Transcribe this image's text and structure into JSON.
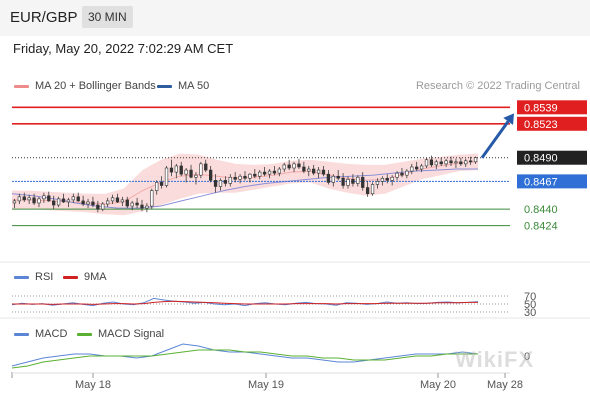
{
  "header": {
    "pair": "EUR/GBP",
    "timeframe": "30 MIN"
  },
  "datetime": "Friday, May 20, 2022 7:02:29 AM CET",
  "legend": {
    "main": [
      {
        "label": "MA 20 + Bollinger Bands",
        "color": "#f08b8b"
      },
      {
        "label": "MA 50",
        "color": "#2e5c9e"
      }
    ],
    "rsi": [
      {
        "label": "RSI",
        "color": "#5b86d6"
      },
      {
        "label": "9MA",
        "color": "#d02020"
      }
    ],
    "macd": [
      {
        "label": "MACD",
        "color": "#5b86d6"
      },
      {
        "label": "MACD Signal",
        "color": "#5ab030"
      }
    ]
  },
  "research_credit": "Research © 2022 Trading Central",
  "watermark": "WikiFX",
  "chart_data": [
    {
      "type": "candlestick",
      "panel": "price",
      "y_range": [
        0.841,
        0.855
      ],
      "levels": [
        {
          "label": "0.8539",
          "value": 0.8539,
          "kind": "resistance",
          "color": "#e02020"
        },
        {
          "label": "0.8523",
          "value": 0.8523,
          "kind": "resistance",
          "color": "#e02020"
        },
        {
          "label": "0.8490",
          "value": 0.849,
          "kind": "last price",
          "color": "#222222"
        },
        {
          "label": "0.8467",
          "value": 0.8467,
          "kind": "pivot",
          "color": "#2f6fd6"
        },
        {
          "label": "0.8440",
          "value": 0.844,
          "kind": "support",
          "color": "#3a8a3a"
        },
        {
          "label": "0.8424",
          "value": 0.8424,
          "kind": "support",
          "color": "#3a8a3a"
        }
      ],
      "forecast_arrow": {
        "from": 0.849,
        "to": 0.8539,
        "direction": "up"
      },
      "ohlc": [
        [
          0.8446,
          0.845,
          0.8441,
          0.8448
        ],
        [
          0.8448,
          0.8455,
          0.8445,
          0.8452
        ],
        [
          0.8452,
          0.8456,
          0.8447,
          0.8449
        ],
        [
          0.8449,
          0.8454,
          0.8445,
          0.8451
        ],
        [
          0.8451,
          0.8455,
          0.8444,
          0.8446
        ],
        [
          0.8446,
          0.8452,
          0.8442,
          0.845
        ],
        [
          0.845,
          0.8456,
          0.8446,
          0.8453
        ],
        [
          0.8453,
          0.8457,
          0.8447,
          0.8448
        ],
        [
          0.8448,
          0.8453,
          0.844,
          0.8444
        ],
        [
          0.8444,
          0.8452,
          0.8442,
          0.845
        ],
        [
          0.845,
          0.8455,
          0.8446,
          0.8447
        ],
        [
          0.8447,
          0.8451,
          0.8442,
          0.8449
        ],
        [
          0.8449,
          0.8455,
          0.8446,
          0.8452
        ],
        [
          0.8452,
          0.8456,
          0.8447,
          0.8448
        ],
        [
          0.8448,
          0.8453,
          0.8443,
          0.8445
        ],
        [
          0.8445,
          0.845,
          0.8441,
          0.8447
        ],
        [
          0.8447,
          0.8452,
          0.8442,
          0.8444
        ],
        [
          0.8444,
          0.8448,
          0.8437,
          0.844
        ],
        [
          0.844,
          0.8447,
          0.8438,
          0.8445
        ],
        [
          0.8445,
          0.8451,
          0.8442,
          0.8448
        ],
        [
          0.8448,
          0.8454,
          0.8445,
          0.8451
        ],
        [
          0.8451,
          0.8455,
          0.8446,
          0.8447
        ],
        [
          0.8447,
          0.8452,
          0.8443,
          0.8449
        ],
        [
          0.8449,
          0.8452,
          0.8441,
          0.8443
        ],
        [
          0.8443,
          0.8448,
          0.8439,
          0.8446
        ],
        [
          0.8446,
          0.8451,
          0.8441,
          0.8444
        ],
        [
          0.8444,
          0.8449,
          0.8438,
          0.8441
        ],
        [
          0.8441,
          0.8446,
          0.8437,
          0.8443
        ],
        [
          0.8443,
          0.846,
          0.844,
          0.8458
        ],
        [
          0.8458,
          0.8468,
          0.8454,
          0.8466
        ],
        [
          0.8466,
          0.8472,
          0.846,
          0.8463
        ],
        [
          0.8463,
          0.8482,
          0.8461,
          0.848
        ],
        [
          0.848,
          0.8488,
          0.8472,
          0.8476
        ],
        [
          0.8476,
          0.8484,
          0.847,
          0.8482
        ],
        [
          0.8482,
          0.8486,
          0.8472,
          0.8474
        ],
        [
          0.8474,
          0.848,
          0.8466,
          0.8478
        ],
        [
          0.8478,
          0.8483,
          0.847,
          0.8471
        ],
        [
          0.8471,
          0.8476,
          0.8464,
          0.8473
        ],
        [
          0.8473,
          0.8486,
          0.847,
          0.8484
        ],
        [
          0.8484,
          0.8488,
          0.8476,
          0.8478
        ],
        [
          0.8478,
          0.8482,
          0.8466,
          0.8468
        ],
        [
          0.8468,
          0.8474,
          0.8456,
          0.8462
        ],
        [
          0.8462,
          0.847,
          0.8458,
          0.8468
        ],
        [
          0.8468,
          0.8472,
          0.8462,
          0.8465
        ],
        [
          0.8465,
          0.8474,
          0.8462,
          0.8471
        ],
        [
          0.8471,
          0.8476,
          0.8466,
          0.8469
        ],
        [
          0.8469,
          0.8474,
          0.8465,
          0.8472
        ],
        [
          0.8472,
          0.8477,
          0.8468,
          0.847
        ],
        [
          0.847,
          0.8475,
          0.8466,
          0.8474
        ],
        [
          0.8474,
          0.8479,
          0.847,
          0.8472
        ],
        [
          0.8472,
          0.8478,
          0.8469,
          0.8476
        ],
        [
          0.8476,
          0.8481,
          0.8472,
          0.8474
        ],
        [
          0.8474,
          0.8479,
          0.847,
          0.8477
        ],
        [
          0.8477,
          0.8482,
          0.8473,
          0.8475
        ],
        [
          0.8475,
          0.8481,
          0.8472,
          0.8479
        ],
        [
          0.8479,
          0.8485,
          0.8476,
          0.8483
        ],
        [
          0.8483,
          0.8488,
          0.8478,
          0.848
        ],
        [
          0.848,
          0.8486,
          0.8476,
          0.8484
        ],
        [
          0.8484,
          0.8489,
          0.8479,
          0.8481
        ],
        [
          0.8481,
          0.8486,
          0.8475,
          0.8477
        ],
        [
          0.8477,
          0.8482,
          0.8472,
          0.8479
        ],
        [
          0.8479,
          0.8483,
          0.8473,
          0.8475
        ],
        [
          0.8475,
          0.8481,
          0.847,
          0.8478
        ],
        [
          0.8478,
          0.8482,
          0.8472,
          0.8474
        ],
        [
          0.8474,
          0.8478,
          0.8464,
          0.8466
        ],
        [
          0.8466,
          0.8474,
          0.8462,
          0.8472
        ],
        [
          0.8472,
          0.8478,
          0.8468,
          0.847
        ],
        [
          0.847,
          0.8475,
          0.846,
          0.8463
        ],
        [
          0.8463,
          0.8472,
          0.846,
          0.8469
        ],
        [
          0.8469,
          0.8474,
          0.8462,
          0.8465
        ],
        [
          0.8465,
          0.8473,
          0.8462,
          0.8471
        ],
        [
          0.8471,
          0.8476,
          0.8458,
          0.8461
        ],
        [
          0.8461,
          0.8467,
          0.8452,
          0.8455
        ],
        [
          0.8455,
          0.8466,
          0.8453,
          0.8464
        ],
        [
          0.8464,
          0.847,
          0.846,
          0.8467
        ],
        [
          0.8467,
          0.8472,
          0.8463,
          0.847
        ],
        [
          0.847,
          0.8474,
          0.8465,
          0.8468
        ],
        [
          0.8468,
          0.8473,
          0.8463,
          0.8471
        ],
        [
          0.8471,
          0.8477,
          0.8468,
          0.8475
        ],
        [
          0.8475,
          0.848,
          0.8471,
          0.8473
        ],
        [
          0.8473,
          0.8479,
          0.847,
          0.8477
        ],
        [
          0.8477,
          0.8484,
          0.8474,
          0.8481
        ],
        [
          0.8481,
          0.8486,
          0.8477,
          0.8479
        ],
        [
          0.8479,
          0.8484,
          0.8476,
          0.8482
        ],
        [
          0.8482,
          0.849,
          0.848,
          0.8488
        ],
        [
          0.8488,
          0.8492,
          0.8481,
          0.8483
        ],
        [
          0.8483,
          0.8488,
          0.8479,
          0.8486
        ],
        [
          0.8486,
          0.849,
          0.8482,
          0.8484
        ],
        [
          0.8484,
          0.8489,
          0.8481,
          0.8487
        ],
        [
          0.8487,
          0.8491,
          0.8482,
          0.8485
        ],
        [
          0.8485,
          0.8489,
          0.848,
          0.8486
        ],
        [
          0.8486,
          0.849,
          0.8482,
          0.8484
        ],
        [
          0.8484,
          0.8489,
          0.8481,
          0.8487
        ],
        [
          0.8487,
          0.8491,
          0.8483,
          0.8486
        ],
        [
          0.8486,
          0.8491,
          0.8484,
          0.849
        ]
      ],
      "ma50": [
        0.8455,
        0.8453,
        0.845,
        0.8446,
        0.8443,
        0.8441,
        0.8441,
        0.8443,
        0.8448,
        0.8453,
        0.8458,
        0.8462,
        0.8465,
        0.8467,
        0.8469,
        0.8471,
        0.8472,
        0.8473,
        0.8475,
        0.8477,
        0.8478,
        0.8479,
        0.8479
      ],
      "bollinger": {
        "middle": [
          0.8449,
          0.8449,
          0.8448,
          0.8447,
          0.8446,
          0.8445,
          0.8447,
          0.8458,
          0.8466,
          0.8472,
          0.8474,
          0.8472,
          0.847,
          0.8471,
          0.8473,
          0.8476,
          0.8477,
          0.8473,
          0.847,
          0.8468,
          0.8469,
          0.8474,
          0.8479,
          0.8482,
          0.8485,
          0.8486
        ],
        "upper": [
          0.8458,
          0.8458,
          0.8457,
          0.8456,
          0.8455,
          0.8455,
          0.846,
          0.8478,
          0.8488,
          0.8494,
          0.8493,
          0.8488,
          0.8484,
          0.8483,
          0.8484,
          0.8487,
          0.8488,
          0.8486,
          0.8484,
          0.8483,
          0.8483,
          0.8486,
          0.8489,
          0.8491,
          0.8493,
          0.8494
        ],
        "lower": [
          0.844,
          0.844,
          0.8439,
          0.8438,
          0.8437,
          0.8435,
          0.8434,
          0.8438,
          0.8444,
          0.845,
          0.8455,
          0.8456,
          0.8456,
          0.8459,
          0.8462,
          0.8465,
          0.8466,
          0.846,
          0.8456,
          0.8453,
          0.8455,
          0.8462,
          0.8469,
          0.8473,
          0.8477,
          0.8478
        ]
      }
    },
    {
      "type": "line",
      "panel": "rsi",
      "y_range": [
        25,
        80
      ],
      "ticks": [
        {
          "label": "70",
          "value": 70
        },
        {
          "label": "50",
          "value": 50
        },
        {
          "label": "30",
          "value": 30
        }
      ],
      "series": [
        {
          "name": "RSI",
          "color": "#5b86d6",
          "values": [
            48,
            52,
            49,
            51,
            47,
            50,
            53,
            49,
            46,
            52,
            55,
            50,
            48,
            53,
            64,
            60,
            57,
            55,
            52,
            54,
            50,
            48,
            50,
            46,
            51,
            53,
            50,
            48,
            52,
            54,
            51,
            50,
            47,
            53,
            52,
            49,
            51,
            55,
            52,
            53,
            51,
            52,
            54,
            55,
            53,
            54,
            56
          ]
        },
        {
          "name": "9MA",
          "color": "#d02020",
          "values": [
            50,
            50,
            50,
            50,
            49,
            50,
            50,
            50,
            49,
            50,
            51,
            51,
            50,
            51,
            54,
            56,
            57,
            56,
            55,
            54,
            53,
            52,
            51,
            50,
            50,
            50,
            50,
            50,
            51,
            51,
            51,
            51,
            50,
            51,
            51,
            51,
            51,
            52,
            52,
            52,
            52,
            52,
            53,
            53,
            53,
            54,
            54
          ]
        }
      ]
    },
    {
      "type": "line",
      "panel": "macd",
      "y_range": [
        -0.0008,
        0.0008
      ],
      "ticks": [
        {
          "label": "0",
          "value": 0
        }
      ],
      "series": [
        {
          "name": "MACD",
          "color": "#5b86d6",
          "values": [
            -0.0005,
            -0.0003,
            -0.0001,
            0.0,
            0.0001,
            0.0001,
            0.0,
            0.0,
            -0.0001,
            0.0,
            0.0003,
            0.0006,
            0.0005,
            0.0003,
            0.0002,
            0.0002,
            0.0001,
            0.0,
            -0.0001,
            -0.0001,
            -0.0002,
            -0.0003,
            -0.0003,
            -0.0002,
            -0.0001,
            0.0,
            0.0001,
            0.0001,
            0.0001,
            0.0002,
            0.0001
          ]
        },
        {
          "name": "MACD Signal",
          "color": "#5ab030",
          "values": [
            -0.0006,
            -0.0005,
            -0.0003,
            -0.0002,
            -0.0001,
            0.0,
            0.0,
            0.0,
            0.0,
            0.0,
            0.0001,
            0.0002,
            0.0003,
            0.0003,
            0.0003,
            0.0002,
            0.0002,
            0.0001,
            0.0,
            0.0,
            -0.0001,
            -0.0001,
            -0.0002,
            -0.0002,
            -0.0002,
            -0.0001,
            0.0,
            0.0,
            0.0001,
            0.0001,
            0.0001
          ]
        }
      ]
    },
    {
      "type": "time_axis",
      "ticks": [
        "May 18",
        "May 19",
        "May 20",
        "May 28"
      ]
    }
  ]
}
